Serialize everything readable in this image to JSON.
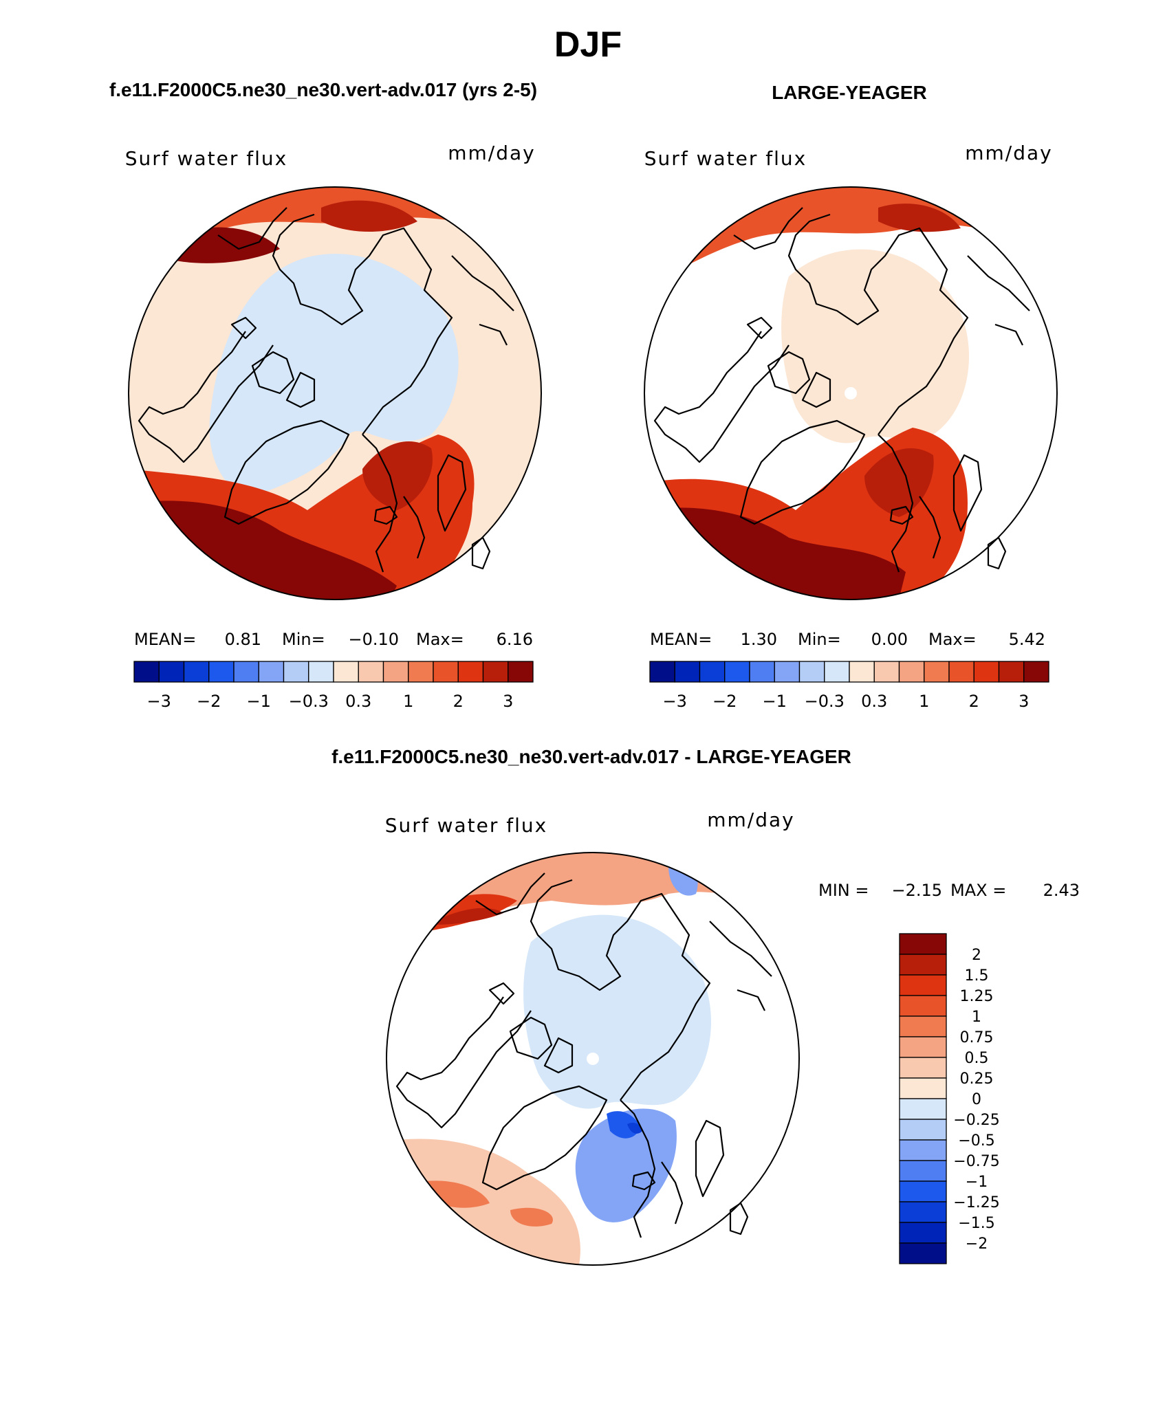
{
  "page_title": "DJF",
  "colors": {
    "neg": [
      "#000e8a",
      "#0024b8",
      "#0a3ed6",
      "#1e59ee",
      "#4f7ef3",
      "#84a5f5",
      "#b4cdf7",
      "#d5e7f9"
    ],
    "pos": [
      "#fce6d4",
      "#f8c9ae",
      "#f4a383",
      "#f07b51",
      "#e8532a",
      "#de3412",
      "#b71f0b",
      "#870707"
    ],
    "diff_neg": [
      "#000e8a",
      "#0024b8",
      "#0a3ed6",
      "#1e59ee",
      "#4f7ef3",
      "#84a5f5",
      "#b4cdf7",
      "#d5e7f9"
    ],
    "diff_pos": [
      "#fce6d4",
      "#f8c9ae",
      "#f4a383",
      "#f07b51",
      "#e8532a",
      "#de3412",
      "#b71f0b",
      "#870707"
    ]
  },
  "chart_data": [
    {
      "type": "heatmap",
      "projection": "north-polar-stereographic",
      "title": "f.e11.F2000C5.ne30_ne30.vert-adv.017 (yrs 2-5)",
      "left_label": "Surf water flux",
      "right_label": "mm/day",
      "stats": {
        "mean_label": "MEAN=",
        "mean": "0.81",
        "min_label": "Min=",
        "min": "−0.10",
        "max_label": "Max=",
        "max": "6.16"
      },
      "colorbar": {
        "orientation": "horizontal",
        "levels": [
          -3,
          -2.5,
          -2,
          -1.5,
          -1,
          -0.6,
          -0.3,
          0,
          0.3,
          0.6,
          1,
          1.5,
          2,
          2.5,
          3
        ],
        "tick_labels": [
          "−3",
          "−2",
          "−1",
          "−0.3",
          "0.3",
          "1",
          "2",
          "3"
        ]
      }
    },
    {
      "type": "heatmap",
      "projection": "north-polar-stereographic",
      "title": "LARGE-YEAGER",
      "left_label": "Surf water flux",
      "right_label": "mm/day",
      "stats": {
        "mean_label": "MEAN=",
        "mean": "1.30",
        "min_label": "Min=",
        "min": "0.00",
        "max_label": "Max=",
        "max": "5.42"
      },
      "colorbar": {
        "orientation": "horizontal",
        "levels": [
          -3,
          -2.5,
          -2,
          -1.5,
          -1,
          -0.6,
          -0.3,
          0,
          0.3,
          0.6,
          1,
          1.5,
          2,
          2.5,
          3
        ],
        "tick_labels": [
          "−3",
          "−2",
          "−1",
          "−0.3",
          "0.3",
          "1",
          "2",
          "3"
        ]
      }
    },
    {
      "type": "heatmap",
      "projection": "north-polar-stereographic",
      "title": "f.e11.F2000C5.ne30_ne30.vert-adv.017 - LARGE-YEAGER",
      "left_label": "Surf water flux",
      "right_label": "mm/day",
      "stats": {
        "min_label": "MIN =",
        "min": "−2.15",
        "max_label": "MAX =",
        "max": "2.43"
      },
      "colorbar": {
        "orientation": "vertical",
        "levels": [
          2,
          1.5,
          1.25,
          1,
          0.75,
          0.5,
          0.25,
          0,
          -0.25,
          -0.5,
          -0.75,
          -1,
          -1.25,
          -1.5,
          -2
        ],
        "tick_labels": [
          "2",
          "1.5",
          "1.25",
          "1",
          "0.75",
          "0.5",
          "0.25",
          "0",
          "−0.25",
          "−0.5",
          "−0.75",
          "−1",
          "−1.25",
          "−1.5",
          "−2"
        ]
      }
    }
  ]
}
